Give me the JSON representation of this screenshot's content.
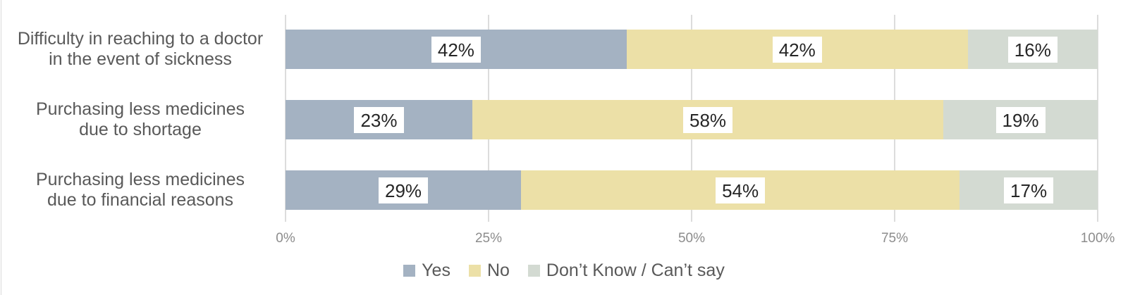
{
  "chart_data": {
    "type": "bar",
    "orientation": "horizontal",
    "stacked": true,
    "title": "",
    "xlabel": "",
    "ylabel": "",
    "xlim": [
      0,
      100
    ],
    "x_tick_labels": [
      "0%",
      "25%",
      "50%",
      "75%",
      "100%"
    ],
    "x_tick_positions": [
      0,
      25,
      50,
      75,
      100
    ],
    "grid": "vertical-gridlines-on",
    "legend_position": "bottom-center",
    "categories": [
      "Difficulty in reaching to a doctor in the event of sickness",
      "Purchasing less medicines due to shortage",
      "Purchasing less medicines due to financial reasons"
    ],
    "category_lines": [
      {
        "line1": "Difficulty in reaching to a doctor",
        "line2": "in the event of sickness"
      },
      {
        "line1": "Purchasing less medicines",
        "line2": "due to shortage"
      },
      {
        "line1": "Purchasing less medicines",
        "line2": "due to financial reasons"
      }
    ],
    "series": [
      {
        "name": "Yes",
        "color": "#a4b2c2",
        "values": [
          42,
          23,
          29
        ],
        "labels": [
          "42%",
          "23%",
          "29%"
        ]
      },
      {
        "name": "No",
        "color": "#ece0a7",
        "values": [
          42,
          58,
          54
        ],
        "labels": [
          "42%",
          "58%",
          "54%"
        ]
      },
      {
        "name": "Don’t Know / Can’t say",
        "color": "#d3dad2",
        "values": [
          16,
          19,
          17
        ],
        "labels": [
          "16%",
          "19%",
          "17%"
        ]
      }
    ],
    "colors": {
      "gridline": "#dcdcdc",
      "category_text": "#595959",
      "tick_text": "#8c8c8c",
      "legend_text": "#595959",
      "value_label_text": "#262626",
      "value_label_background": "#ffffff",
      "background": "#ffffff"
    }
  }
}
